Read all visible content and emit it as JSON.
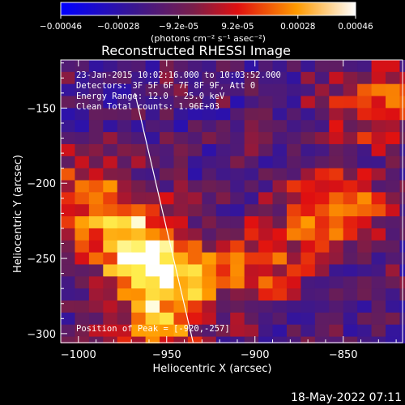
{
  "colorbar": {
    "ticks": [
      "-0.00046",
      "-0.00028",
      "-9.2e-05",
      "9.2e-05",
      "0.00028",
      "0.00046"
    ],
    "unit_label": "(photons cm⁻² s⁻¹ asec⁻²)",
    "range": [
      -0.00046,
      0.00046
    ]
  },
  "chart_data": {
    "type": "heatmap",
    "title": "Reconstructed RHESSI Image",
    "xlabel": "Heliocentric X (arcsec)",
    "ylabel": "Heliocentric Y (arcsec)",
    "xlim": [
      -1010,
      -815
    ],
    "ylim": [
      -306,
      -118
    ],
    "xticks": [
      -1000,
      -950,
      -900,
      -850
    ],
    "xtick_labels": [
      "−1000",
      "−950",
      "−900",
      "−850"
    ],
    "yticks": [
      -150,
      -200,
      -250,
      -300
    ],
    "ytick_labels": [
      "−150",
      "−200",
      "−250",
      "−300"
    ],
    "annotations": [
      "23-Jan-2015 10:02:16.000 to 10:03:52.000",
      "Detectors: 3F 5F 6F 7F 8F 9F, Att 0",
      "Energy Range: 12.0 - 25.0 keV",
      "Clean     Total counts: 1.96E+03"
    ],
    "peak_label": "Position of Peak = [-920,-257]",
    "peak_position": [
      -920,
      -257
    ],
    "limb_line": [
      [
        -968,
        -140
      ],
      [
        -935,
        -306
      ]
    ],
    "colormap": "heat (blue-purple-red-orange-yellow-white)",
    "source_regions": [
      {
        "x": -955,
        "y": -260,
        "level": 1.0
      },
      {
        "x": -975,
        "y": -232,
        "level": 0.85
      },
      {
        "x": -860,
        "y": -215,
        "level": 0.8
      },
      {
        "x": -900,
        "y": -250,
        "level": 0.55
      },
      {
        "x": -1000,
        "y": -200,
        "level": 0.5
      },
      {
        "x": -960,
        "y": -300,
        "level": 0.55
      },
      {
        "x": -835,
        "y": -145,
        "level": 0.6
      }
    ]
  },
  "footer": {
    "timestamp": "18-May-2022 07:11"
  }
}
